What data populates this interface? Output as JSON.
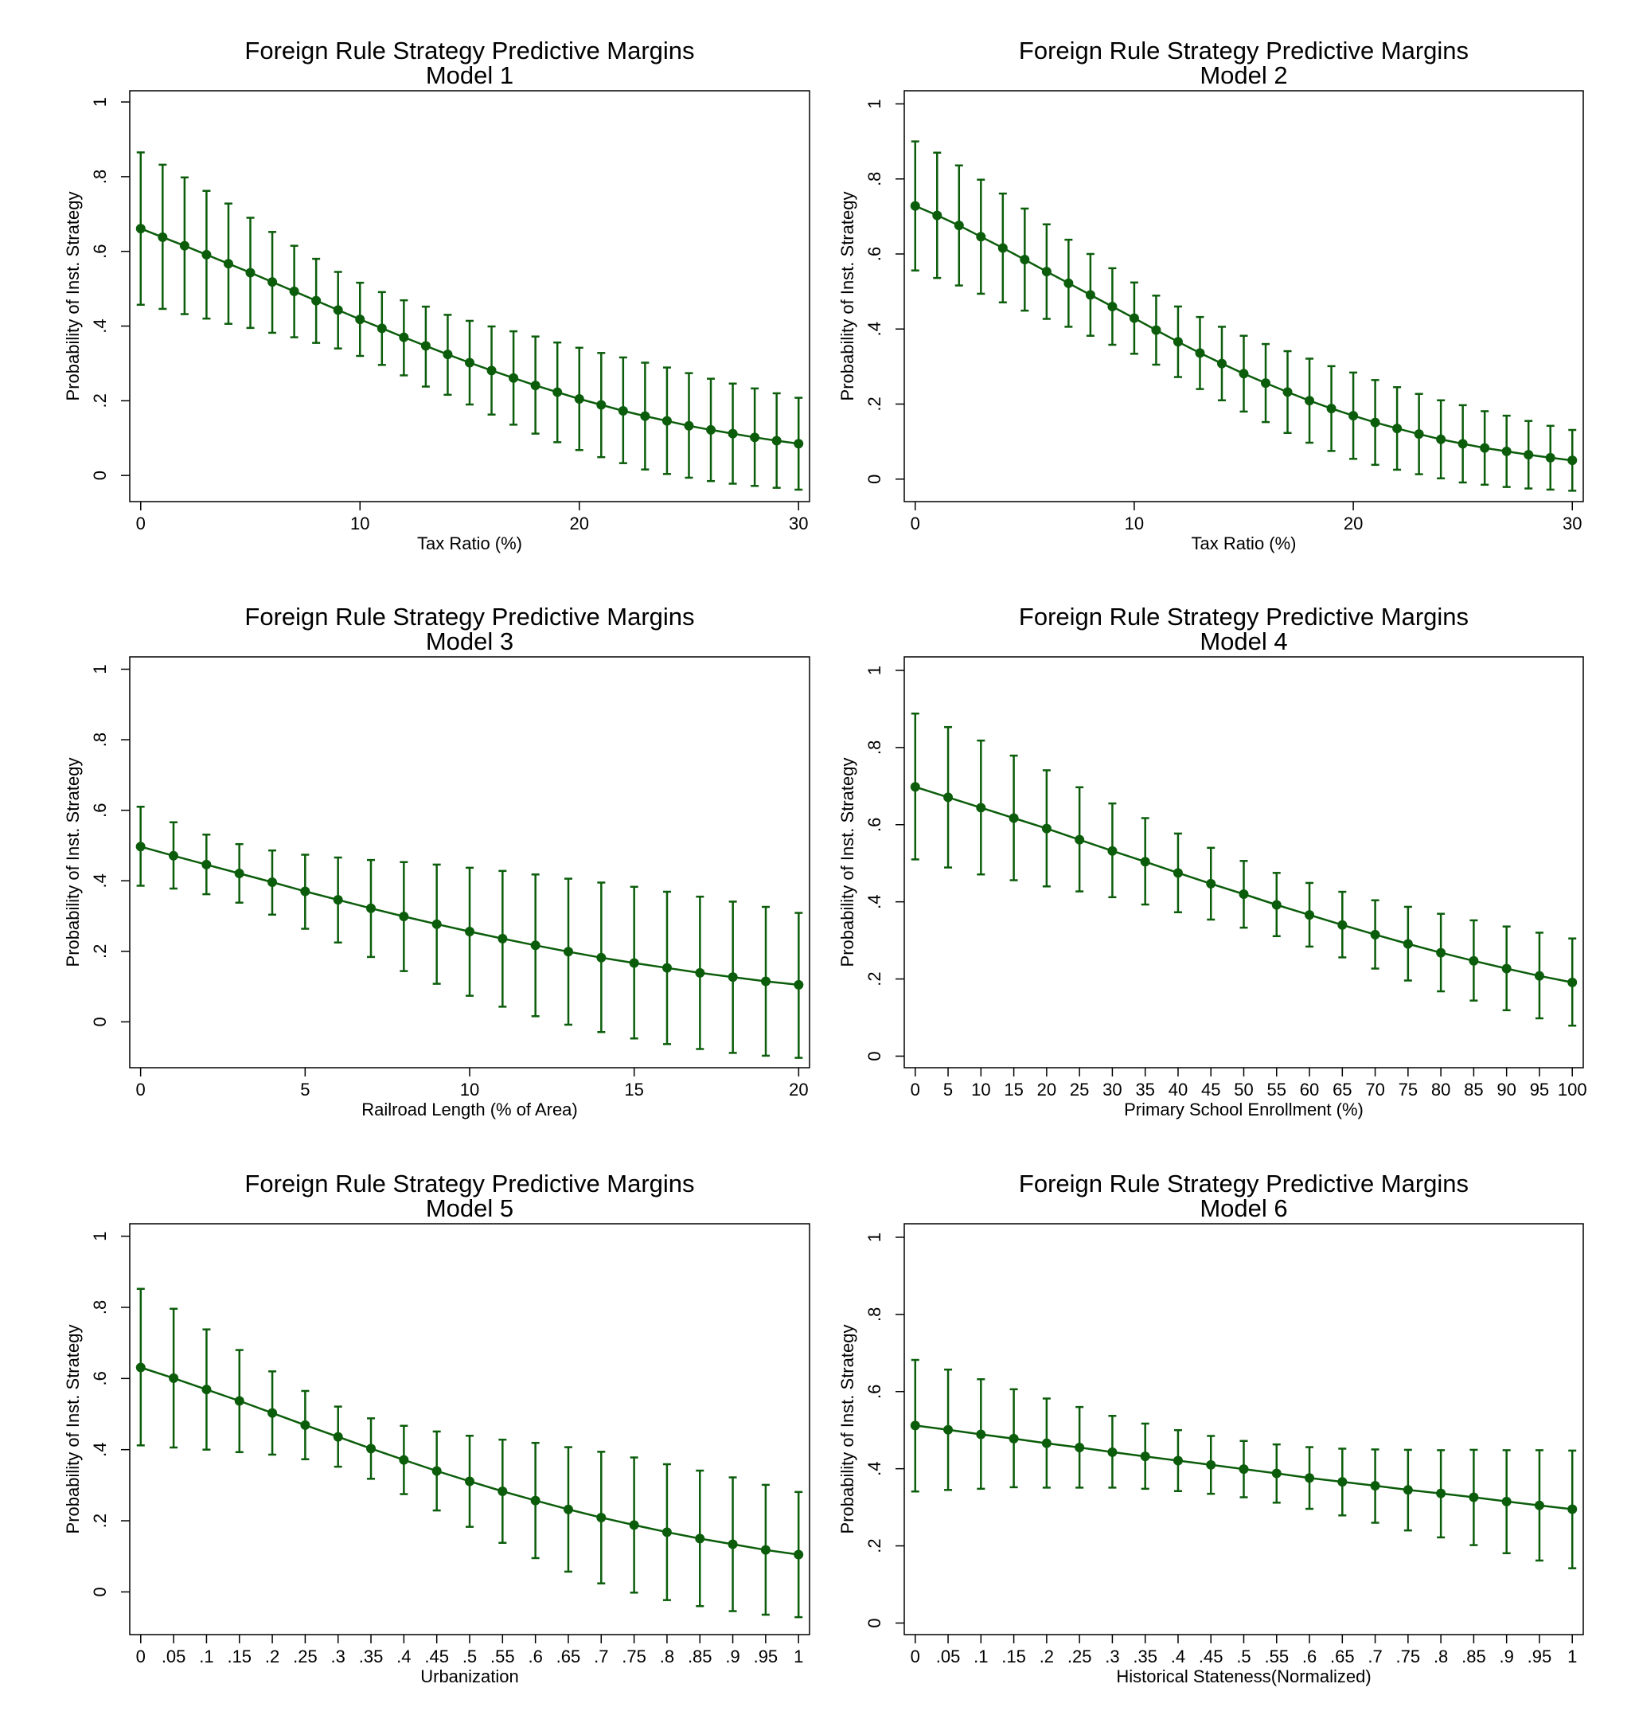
{
  "colors": {
    "series": "#0b5d0b",
    "axis": "#000000",
    "frame": "#000000",
    "background": "#ffffff"
  },
  "chart_data": [
    {
      "type": "line",
      "title": "Foreign Rule Strategy Predictive Margins",
      "subtitle": "Model 1",
      "xlabel": "Tax Ratio (%)",
      "ylabel": "Probability of Inst. Strategy",
      "xlim": [
        -0.5,
        30.5
      ],
      "ylim": [
        -0.07,
        1.03
      ],
      "xticks": [
        0,
        10,
        20,
        30
      ],
      "xtick_labels": [
        "0",
        "10",
        "20",
        "30"
      ],
      "yticks": [
        0,
        0.2,
        0.4,
        0.6,
        0.8,
        1
      ],
      "ytick_labels": [
        "0",
        ".2",
        ".4",
        ".6",
        ".8",
        "1"
      ],
      "x": [
        0,
        1,
        2,
        3,
        4,
        5,
        6,
        7,
        8,
        9,
        10,
        11,
        12,
        13,
        14,
        15,
        16,
        17,
        18,
        19,
        20,
        21,
        22,
        23,
        24,
        25,
        26,
        27,
        28,
        29,
        30
      ],
      "y": [
        0.661,
        0.638,
        0.615,
        0.591,
        0.567,
        0.543,
        0.518,
        0.493,
        0.468,
        0.443,
        0.418,
        0.394,
        0.37,
        0.347,
        0.324,
        0.302,
        0.281,
        0.261,
        0.241,
        0.223,
        0.205,
        0.189,
        0.173,
        0.159,
        0.146,
        0.133,
        0.122,
        0.112,
        0.102,
        0.093,
        0.085
      ],
      "lower": [
        0.457,
        0.446,
        0.432,
        0.42,
        0.406,
        0.395,
        0.382,
        0.37,
        0.355,
        0.34,
        0.32,
        0.296,
        0.268,
        0.238,
        0.216,
        0.19,
        0.163,
        0.136,
        0.112,
        0.089,
        0.068,
        0.049,
        0.033,
        0.016,
        0.004,
        -0.006,
        -0.015,
        -0.022,
        -0.028,
        -0.033,
        -0.038
      ],
      "upper": [
        0.865,
        0.832,
        0.798,
        0.762,
        0.728,
        0.69,
        0.652,
        0.615,
        0.58,
        0.545,
        0.516,
        0.491,
        0.469,
        0.452,
        0.43,
        0.414,
        0.399,
        0.386,
        0.372,
        0.356,
        0.342,
        0.328,
        0.316,
        0.302,
        0.289,
        0.274,
        0.259,
        0.246,
        0.233,
        0.22,
        0.208
      ]
    },
    {
      "type": "line",
      "title": "Foreign Rule Strategy Predictive Margins",
      "subtitle": "Model 2",
      "xlabel": "Tax Ratio (%)",
      "ylabel": "Probability of Inst. Strategy",
      "xlim": [
        -0.5,
        30.5
      ],
      "ylim": [
        -0.06,
        1.035
      ],
      "xticks": [
        0,
        10,
        20,
        30
      ],
      "xtick_labels": [
        "0",
        "10",
        "20",
        "30"
      ],
      "yticks": [
        0,
        0.2,
        0.4,
        0.6,
        0.8,
        1
      ],
      "ytick_labels": [
        "0",
        ".2",
        ".4",
        ".6",
        ".8",
        "1"
      ],
      "x": [
        0,
        1,
        2,
        3,
        4,
        5,
        6,
        7,
        8,
        9,
        10,
        11,
        12,
        13,
        14,
        15,
        16,
        17,
        18,
        19,
        20,
        21,
        22,
        23,
        24,
        25,
        26,
        27,
        28,
        29,
        30
      ],
      "y": [
        0.728,
        0.703,
        0.676,
        0.646,
        0.616,
        0.585,
        0.553,
        0.522,
        0.491,
        0.46,
        0.429,
        0.397,
        0.366,
        0.336,
        0.308,
        0.281,
        0.256,
        0.232,
        0.209,
        0.188,
        0.169,
        0.151,
        0.135,
        0.12,
        0.106,
        0.094,
        0.083,
        0.074,
        0.065,
        0.057,
        0.05
      ],
      "lower": [
        0.556,
        0.536,
        0.516,
        0.494,
        0.471,
        0.449,
        0.427,
        0.406,
        0.382,
        0.358,
        0.334,
        0.305,
        0.272,
        0.24,
        0.21,
        0.18,
        0.152,
        0.123,
        0.097,
        0.075,
        0.054,
        0.038,
        0.025,
        0.013,
        0.002,
        -0.009,
        -0.015,
        -0.021,
        -0.025,
        -0.028,
        -0.031
      ],
      "upper": [
        0.9,
        0.87,
        0.836,
        0.798,
        0.761,
        0.721,
        0.679,
        0.638,
        0.6,
        0.562,
        0.524,
        0.489,
        0.46,
        0.432,
        0.406,
        0.382,
        0.36,
        0.341,
        0.321,
        0.301,
        0.284,
        0.264,
        0.245,
        0.227,
        0.21,
        0.197,
        0.181,
        0.169,
        0.155,
        0.142,
        0.131
      ]
    },
    {
      "type": "line",
      "title": "Foreign Rule Strategy Predictive Margins",
      "subtitle": "Model 3",
      "xlabel": "Railroad Length (% of Area)",
      "ylabel": "Probability of Inst. Strategy",
      "xlim": [
        -0.33,
        20.33
      ],
      "ylim": [
        -0.13,
        1.035
      ],
      "xticks": [
        0,
        5,
        10,
        15,
        20
      ],
      "xtick_labels": [
        "0",
        "5",
        "10",
        "15",
        "20"
      ],
      "yticks": [
        0,
        0.2,
        0.4,
        0.6,
        0.8,
        1
      ],
      "ytick_labels": [
        "0",
        ".2",
        ".4",
        ".6",
        ".8",
        "1"
      ],
      "x": [
        0,
        1,
        2,
        3,
        4,
        5,
        6,
        7,
        8,
        9,
        10,
        11,
        12,
        13,
        14,
        15,
        16,
        17,
        18,
        19,
        20
      ],
      "y": [
        0.497,
        0.471,
        0.446,
        0.421,
        0.396,
        0.37,
        0.346,
        0.322,
        0.299,
        0.277,
        0.256,
        0.236,
        0.217,
        0.199,
        0.182,
        0.167,
        0.153,
        0.139,
        0.127,
        0.115,
        0.105
      ],
      "lower": [
        0.386,
        0.378,
        0.362,
        0.338,
        0.304,
        0.264,
        0.225,
        0.184,
        0.144,
        0.108,
        0.074,
        0.043,
        0.016,
        -0.008,
        -0.029,
        -0.047,
        -0.063,
        -0.077,
        -0.088,
        -0.096,
        -0.102
      ],
      "upper": [
        0.61,
        0.566,
        0.531,
        0.504,
        0.486,
        0.474,
        0.466,
        0.459,
        0.453,
        0.446,
        0.437,
        0.428,
        0.418,
        0.406,
        0.395,
        0.383,
        0.369,
        0.355,
        0.341,
        0.326,
        0.309
      ]
    },
    {
      "type": "line",
      "title": "Foreign Rule Strategy Predictive Margins",
      "subtitle": "Model 4",
      "xlabel": "Primary School Enrollment (%)",
      "ylabel": "Probability of Inst. Strategy",
      "xlim": [
        -1.67,
        101.67
      ],
      "ylim": [
        -0.03,
        1.035
      ],
      "xticks": [
        0,
        5,
        10,
        15,
        20,
        25,
        30,
        35,
        40,
        45,
        50,
        55,
        60,
        65,
        70,
        75,
        80,
        85,
        90,
        95,
        100
      ],
      "xtick_labels": [
        "0",
        "5",
        "10",
        "15",
        "20",
        "25",
        "30",
        "35",
        "40",
        "45",
        "50",
        "55",
        "60",
        "65",
        "70",
        "75",
        "80",
        "85",
        "90",
        "95",
        "100"
      ],
      "yticks": [
        0,
        0.2,
        0.4,
        0.6,
        0.8,
        1
      ],
      "ytick_labels": [
        "0",
        ".2",
        ".4",
        ".6",
        ".8",
        "1"
      ],
      "x": [
        0,
        5,
        10,
        15,
        20,
        25,
        30,
        35,
        40,
        45,
        50,
        55,
        60,
        65,
        70,
        75,
        80,
        85,
        90,
        95,
        100
      ],
      "y": [
        0.698,
        0.671,
        0.644,
        0.617,
        0.59,
        0.561,
        0.532,
        0.504,
        0.475,
        0.447,
        0.42,
        0.392,
        0.366,
        0.34,
        0.315,
        0.291,
        0.268,
        0.247,
        0.227,
        0.208,
        0.191
      ],
      "lower": [
        0.51,
        0.489,
        0.471,
        0.456,
        0.44,
        0.427,
        0.412,
        0.393,
        0.373,
        0.354,
        0.333,
        0.311,
        0.284,
        0.256,
        0.227,
        0.196,
        0.168,
        0.144,
        0.119,
        0.098,
        0.079
      ],
      "upper": [
        0.888,
        0.853,
        0.818,
        0.779,
        0.741,
        0.697,
        0.655,
        0.617,
        0.577,
        0.54,
        0.506,
        0.475,
        0.449,
        0.426,
        0.404,
        0.387,
        0.369,
        0.352,
        0.336,
        0.32,
        0.305
      ]
    },
    {
      "type": "line",
      "title": "Foreign Rule Strategy Predictive Margins",
      "subtitle": "Model 5",
      "xlabel": "Urbanization",
      "ylabel": "Probability of Inst. Strategy",
      "xlim": [
        -0.0167,
        1.0167
      ],
      "ylim": [
        -0.12,
        1.035
      ],
      "xticks": [
        0,
        0.05,
        0.1,
        0.15,
        0.2,
        0.25,
        0.3,
        0.35,
        0.4,
        0.45,
        0.5,
        0.55,
        0.6,
        0.65,
        0.7,
        0.75,
        0.8,
        0.85,
        0.9,
        0.95,
        1
      ],
      "xtick_labels": [
        "0",
        ".05",
        ".1",
        ".15",
        ".2",
        ".25",
        ".3",
        ".35",
        ".4",
        ".45",
        ".5",
        ".55",
        ".6",
        ".65",
        ".7",
        ".75",
        ".8",
        ".85",
        ".9",
        ".95",
        "1"
      ],
      "yticks": [
        0,
        0.2,
        0.4,
        0.6,
        0.8,
        1
      ],
      "ytick_labels": [
        "0",
        ".2",
        ".4",
        ".6",
        ".8",
        "1"
      ],
      "x": [
        0,
        0.05,
        0.1,
        0.15,
        0.2,
        0.25,
        0.3,
        0.35,
        0.4,
        0.45,
        0.5,
        0.55,
        0.6,
        0.65,
        0.7,
        0.75,
        0.8,
        0.85,
        0.9,
        0.95,
        1
      ],
      "y": [
        0.631,
        0.601,
        0.569,
        0.537,
        0.503,
        0.469,
        0.436,
        0.403,
        0.371,
        0.34,
        0.311,
        0.283,
        0.257,
        0.232,
        0.209,
        0.188,
        0.168,
        0.15,
        0.134,
        0.118,
        0.105
      ],
      "lower": [
        0.412,
        0.406,
        0.4,
        0.393,
        0.386,
        0.373,
        0.352,
        0.318,
        0.275,
        0.229,
        0.183,
        0.138,
        0.095,
        0.057,
        0.024,
        -0.002,
        -0.023,
        -0.04,
        -0.054,
        -0.064,
        -0.071
      ],
      "upper": [
        0.852,
        0.796,
        0.738,
        0.68,
        0.62,
        0.565,
        0.521,
        0.488,
        0.467,
        0.451,
        0.439,
        0.428,
        0.419,
        0.407,
        0.394,
        0.378,
        0.359,
        0.341,
        0.322,
        0.301,
        0.281
      ]
    },
    {
      "type": "line",
      "title": "Foreign Rule Strategy Predictive Margins",
      "subtitle": "Model 6",
      "xlabel": "Historical Stateness(Normalized)",
      "ylabel": "Probability of Inst. Strategy",
      "xlim": [
        -0.0167,
        1.0167
      ],
      "ylim": [
        -0.03,
        1.035
      ],
      "xticks": [
        0,
        0.05,
        0.1,
        0.15,
        0.2,
        0.25,
        0.3,
        0.35,
        0.4,
        0.45,
        0.5,
        0.55,
        0.6,
        0.65,
        0.7,
        0.75,
        0.8,
        0.85,
        0.9,
        0.95,
        1
      ],
      "xtick_labels": [
        "0",
        ".05",
        ".1",
        ".15",
        ".2",
        ".25",
        ".3",
        ".35",
        ".4",
        ".45",
        ".5",
        ".55",
        ".6",
        ".65",
        ".7",
        ".75",
        ".8",
        ".85",
        ".9",
        ".95",
        "1"
      ],
      "yticks": [
        0,
        0.2,
        0.4,
        0.6,
        0.8,
        1
      ],
      "ytick_labels": [
        "0",
        ".2",
        ".4",
        ".6",
        ".8",
        "1"
      ],
      "x": [
        0,
        0.05,
        0.1,
        0.15,
        0.2,
        0.25,
        0.3,
        0.35,
        0.4,
        0.45,
        0.5,
        0.55,
        0.6,
        0.65,
        0.7,
        0.75,
        0.8,
        0.85,
        0.9,
        0.95,
        1
      ],
      "y": [
        0.512,
        0.501,
        0.489,
        0.478,
        0.466,
        0.455,
        0.443,
        0.432,
        0.421,
        0.41,
        0.399,
        0.388,
        0.376,
        0.366,
        0.356,
        0.345,
        0.336,
        0.326,
        0.315,
        0.305,
        0.295
      ],
      "lower": [
        0.341,
        0.345,
        0.348,
        0.352,
        0.351,
        0.351,
        0.351,
        0.348,
        0.342,
        0.335,
        0.326,
        0.312,
        0.296,
        0.279,
        0.26,
        0.24,
        0.222,
        0.202,
        0.181,
        0.162,
        0.142
      ],
      "upper": [
        0.682,
        0.657,
        0.632,
        0.606,
        0.582,
        0.56,
        0.537,
        0.517,
        0.5,
        0.485,
        0.472,
        0.463,
        0.456,
        0.452,
        0.45,
        0.449,
        0.448,
        0.449,
        0.448,
        0.448,
        0.447
      ]
    }
  ]
}
